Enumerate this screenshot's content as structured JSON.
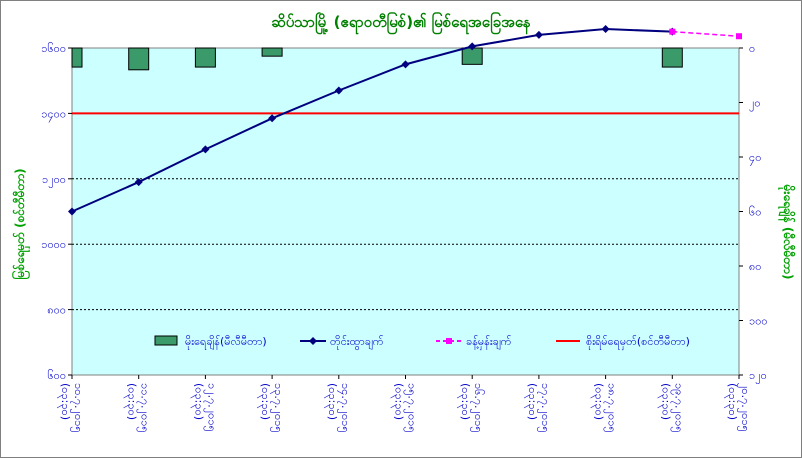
{
  "chart_data": {
    "type": "line",
    "title": "ဆိပ်သာမြို့ (ဧရာဝတီမြစ်)၏ မြစ်ရေအခြေအနေ",
    "ylabel_left": "မြစ်ရေမှတ် (စင်တီမီတာ)",
    "ylabel_right": "မိုးရေချိန် (မီလီမီတာ)",
    "categories": [
      "၁၀.၇.၂၀၁၅\n(၀၃:၃၀)",
      "၁၁.၇.၂၀၁၅\n(၀၃:၃၀)",
      "၁၂.၇.၂၀၁၅\n(၀၃:၃၀)",
      "၁၃.၇.၂၀၁၅\n(၀၃:၃၀)",
      "၁၄.၇.၂၀၁၅\n(၀၃:၃၀)",
      "၁၅.၇.၂၀၁၅\n(၀၃:၃၀)",
      "၁၆.၇.၂၀၁၅\n(၀၃:၃၀)",
      "၁၇.၇.၂၀၁၅\n(၀၃:၃၀)",
      "၁၈.၇.၂၀၁၅\n(၀၃:၃၀)",
      "၁၉.၇.၂၀၁၅\n(၀၃:၃၀)",
      "၂၀.၇.၂၀၁၅\n(၀၃:၃၀)"
    ],
    "ylim_left": [
      600,
      1600
    ],
    "yticks_left": [
      600,
      800,
      1000,
      1200,
      1400,
      1600
    ],
    "ytick_labels_left": [
      "၆၀၀",
      "၈၀၀",
      "၁၀၀၀",
      "၁၂၀၀",
      "၁၄၀၀",
      "၁၆၀၀"
    ],
    "ylim_right": [
      120,
      0
    ],
    "yticks_right": [
      0,
      20,
      40,
      60,
      80,
      100,
      120
    ],
    "ytick_labels_right": [
      "၀",
      "၂၀",
      "၄၀",
      "၆၀",
      "၈၀",
      "၁၀၀",
      "၁၂၀"
    ],
    "grid": "horizontal dashed",
    "series": [
      {
        "name": "မိုးရေချိန်(မီလီမီတာ)",
        "kind": "bar",
        "axis": "right",
        "color": "#3a9a6a",
        "values": [
          7,
          8,
          7,
          3,
          null,
          null,
          6,
          null,
          null,
          7,
          null
        ]
      },
      {
        "name": "တိုင်းထွာချက်",
        "kind": "line",
        "axis": "left",
        "color": "#00007f",
        "values": [
          1100,
          1190,
          1290,
          1385,
          1470,
          1550,
          1605,
          1640,
          1658,
          1650,
          null
        ]
      },
      {
        "name": "ခန့်မှန်းချက်",
        "kind": "line",
        "axis": "left",
        "color": "#ff00ff",
        "dashed": true,
        "values": [
          null,
          null,
          null,
          null,
          null,
          null,
          null,
          null,
          null,
          1650,
          1636
        ]
      },
      {
        "name": "စိုးရိမ်ရေမှတ်(စင်တီမီတာ)",
        "kind": "hline",
        "axis": "left",
        "color": "#ff0000",
        "value": 1400
      }
    ],
    "legend_position": "bottom-center inside plot",
    "colors": {
      "plot_bg": "#ccffff",
      "title": "#008000",
      "axis_text": "#0000cc",
      "axis_title": "#00a000"
    }
  }
}
